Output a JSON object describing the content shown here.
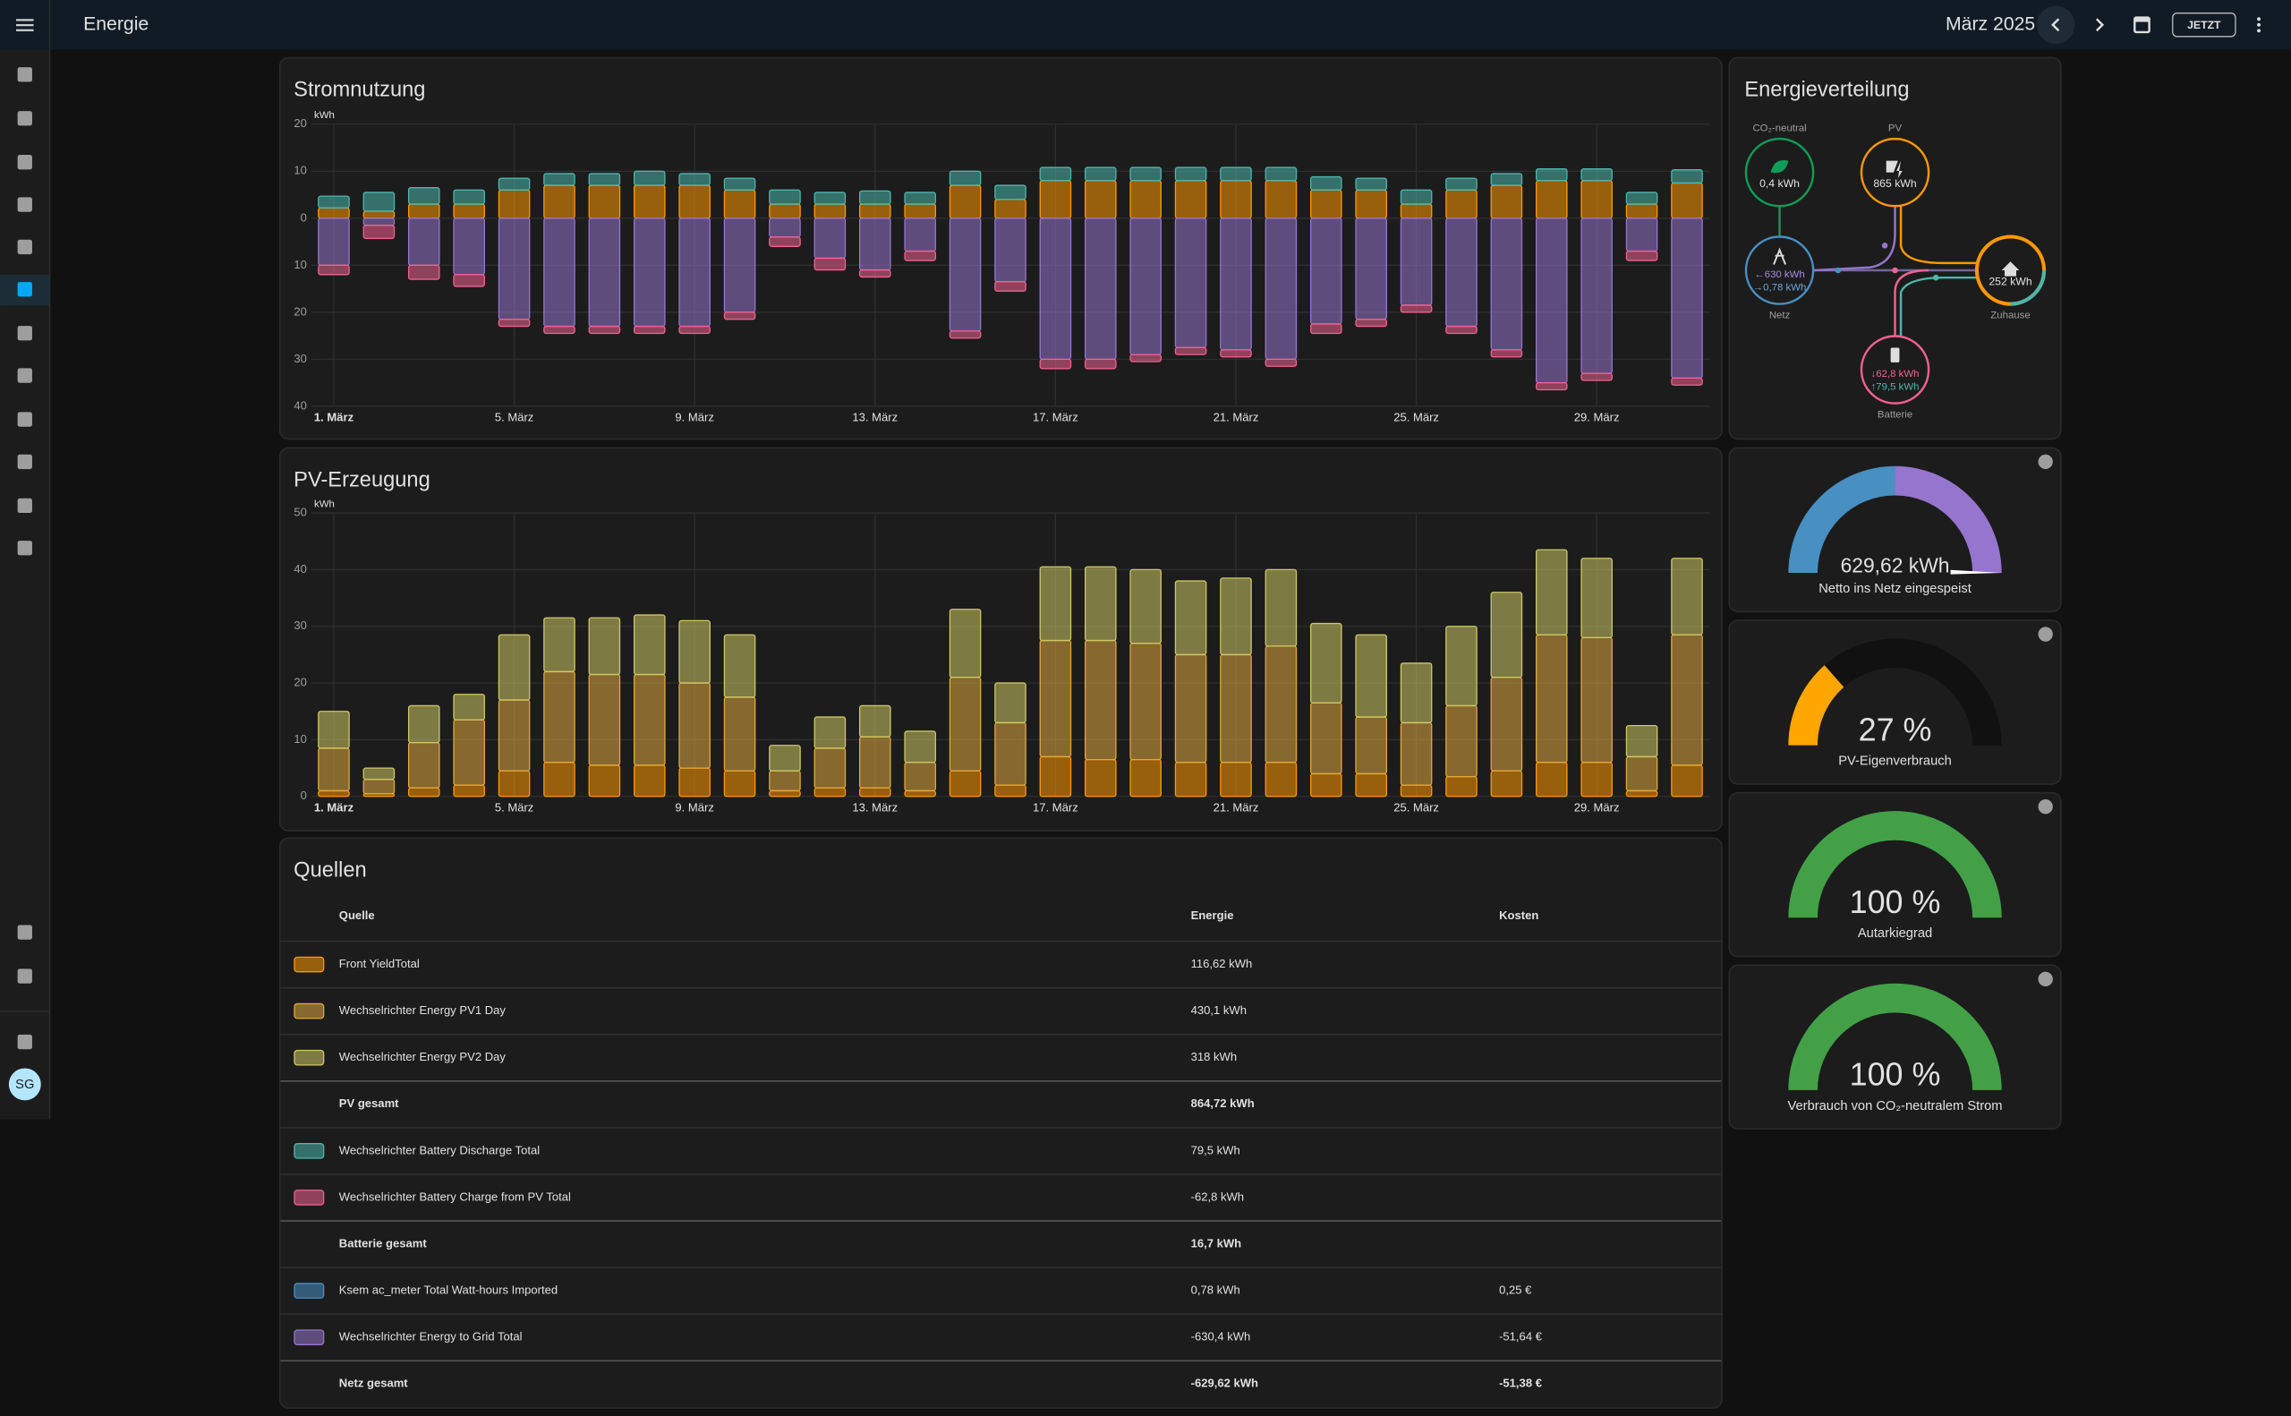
{
  "header": {
    "title": "Energie",
    "period": "März 2025",
    "now_button": "JETZT"
  },
  "sidebar": {
    "avatar": "SG"
  },
  "chart_data": [
    {
      "type": "bar",
      "stacked": true,
      "title": "Stromnutzung",
      "y_label": "kWh",
      "categories": [
        "1. März",
        null,
        null,
        null,
        "5. März",
        null,
        null,
        null,
        "9. März",
        null,
        null,
        null,
        "13. März",
        null,
        null,
        null,
        "17. März",
        null,
        null,
        null,
        "21. März",
        null,
        null,
        null,
        "25. März",
        null,
        null,
        null,
        "29. März",
        null,
        null
      ],
      "ylim": [
        -40,
        20
      ],
      "yticks": [
        20,
        10,
        0,
        {
          "value": -10,
          "label": "10"
        },
        {
          "value": -20,
          "label": "20"
        },
        {
          "value": -30,
          "label": "30"
        },
        {
          "value": -40,
          "label": "40"
        }
      ],
      "grid": true,
      "series": [
        {
          "color": "#ff9800",
          "values": [
            2.2,
            1.5,
            3,
            3,
            6,
            7,
            7,
            7,
            7,
            6,
            3,
            3,
            3,
            3,
            7,
            4,
            8,
            8,
            8,
            8,
            8,
            8,
            6,
            6,
            3,
            6,
            7,
            8,
            8,
            3,
            7.5
          ]
        },
        {
          "color": "#4db6ac",
          "values": [
            2.5,
            4,
            3.5,
            3,
            2.5,
            2.5,
            2.5,
            3,
            2.5,
            2.5,
            3,
            2.5,
            2.8,
            2.5,
            3,
            3,
            2.8,
            2.8,
            2.8,
            2.8,
            2.8,
            2.8,
            2.8,
            2.5,
            3,
            2.5,
            2.5,
            2.5,
            2.5,
            2.5,
            2.8
          ]
        },
        {
          "color": "#9575cd",
          "values": [
            -10,
            -1.5,
            -10,
            -12,
            -21.5,
            -23,
            -23,
            -23,
            -23,
            -20,
            -4,
            -8.5,
            -11,
            -7,
            -24,
            -13.5,
            -30,
            -30,
            -29,
            -27.5,
            -28,
            -30,
            -22.5,
            -21.5,
            -18.5,
            -23,
            -28,
            -35,
            -33,
            -7,
            -34
          ]
        },
        {
          "color": "#f06292",
          "values": [
            -2,
            -2.8,
            -3,
            -2.5,
            -1.5,
            -1.5,
            -1.5,
            -1.5,
            -1.5,
            -1.5,
            -2,
            -2.5,
            -1.5,
            -2,
            -1.5,
            -2,
            -2,
            -2,
            -1.5,
            -1.5,
            -1.5,
            -1.5,
            -2,
            -1.5,
            -1.5,
            -1.5,
            -1.5,
            -1.5,
            -1.5,
            -2,
            -1.5
          ]
        }
      ]
    },
    {
      "type": "bar",
      "stacked": true,
      "title": "PV-Erzeugung",
      "y_label": "kWh",
      "categories": [
        "1. März",
        null,
        null,
        null,
        "5. März",
        null,
        null,
        null,
        "9. März",
        null,
        null,
        null,
        "13. März",
        null,
        null,
        null,
        "17. März",
        null,
        null,
        null,
        "21. März",
        null,
        null,
        null,
        "25. März",
        null,
        null,
        null,
        "29. März",
        null,
        null
      ],
      "ylim": [
        0,
        50
      ],
      "yticks": [
        0,
        10,
        20,
        30,
        40,
        50
      ],
      "grid": true,
      "series": [
        {
          "color": "#ff9800",
          "values": [
            1,
            0.5,
            1.5,
            2,
            4.5,
            6,
            5.5,
            5.5,
            5,
            4.5,
            1,
            1.5,
            1.5,
            1,
            4.5,
            2,
            7,
            6.5,
            6.5,
            6,
            6,
            6,
            4,
            4,
            2,
            3.5,
            4.5,
            6,
            6,
            1,
            5.5
          ]
        },
        {
          "color": "#e0a83e",
          "values": [
            7.5,
            2.5,
            8,
            11.5,
            12.5,
            16,
            16,
            16,
            15,
            13,
            3.5,
            7,
            9,
            5,
            16.5,
            11,
            20.5,
            21,
            20.5,
            19,
            19,
            20.5,
            12.5,
            10,
            11,
            12.5,
            16.5,
            22.5,
            22,
            6,
            23
          ]
        },
        {
          "color": "#cdc865",
          "values": [
            6.5,
            2,
            6.5,
            4.5,
            11.5,
            9.5,
            10,
            10.5,
            11,
            11,
            4.5,
            5.5,
            5.5,
            5.5,
            12,
            7,
            13,
            13,
            13,
            13,
            13.5,
            13.5,
            14,
            14.5,
            10.5,
            14,
            15,
            15,
            14,
            5.5,
            13.5
          ]
        }
      ]
    }
  ],
  "sources": {
    "title": "Quellen",
    "columns": [
      "Quelle",
      "Energie",
      "Kosten"
    ],
    "rows": [
      {
        "source": "Front YieldTotal",
        "energy": "116,62 kWh",
        "color": "#ff9800"
      },
      {
        "source": "Wechselrichter Energy PV1 Day",
        "energy": "430,1 kWh",
        "color": "#e0a83e"
      },
      {
        "source": "Wechselrichter Energy PV2 Day",
        "energy": "318 kWh",
        "color": "#cdc865"
      },
      {
        "source": "PV gesamt",
        "energy": "864,72 kWh",
        "total": true
      },
      {
        "source": "Wechselrichter Battery Discharge Total",
        "energy": "79,5 kWh",
        "color": "#4db6ac"
      },
      {
        "source": "Wechselrichter Battery Charge from PV Total",
        "energy": "-62,8 kWh",
        "color": "#f06292"
      },
      {
        "source": "Batterie gesamt",
        "energy": "16,7 kWh",
        "total": true
      },
      {
        "source": "Ksem ac_meter Total Watt-hours Imported",
        "energy": "0,78 kWh",
        "cost": "0,25 €",
        "color": "#488fc2"
      },
      {
        "source": "Wechselrichter Energy to Grid Total",
        "energy": "-630,4 kWh",
        "cost": "-51,64 €",
        "color": "#9575cd"
      },
      {
        "source": "Netz gesamt",
        "energy": "-629,62 kWh",
        "cost": "-51,38 €",
        "total": true
      }
    ]
  },
  "distribution": {
    "title": "Energieverteilung",
    "co2": {
      "label": "CO₂-neutral",
      "value": "0,4 kWh"
    },
    "pv": {
      "label": "PV",
      "value": "865 kWh"
    },
    "grid": {
      "label": "Netz",
      "out": "←630 kWh",
      "in": "→0,78 kWh"
    },
    "home": {
      "label": "Zuhause",
      "value": "252 kWh"
    },
    "battery": {
      "label": "Batterie",
      "in": "↓62,8 kWh",
      "out": "↑79,5 kWh"
    }
  },
  "gauges": [
    {
      "label": "629,62 kWh",
      "name": "Netto ins Netz eingespeist"
    },
    {
      "value": 27,
      "label": "27 %",
      "name": "PV-Eigenverbrauch",
      "color": "#ffa600"
    },
    {
      "value": 100,
      "label": "100 %",
      "name": "Autarkiegrad",
      "color": "#43a047"
    },
    {
      "value": 100,
      "label": "100 %",
      "name": "Verbrauch von CO₂-neutralem Strom",
      "color": "#43a047"
    }
  ]
}
